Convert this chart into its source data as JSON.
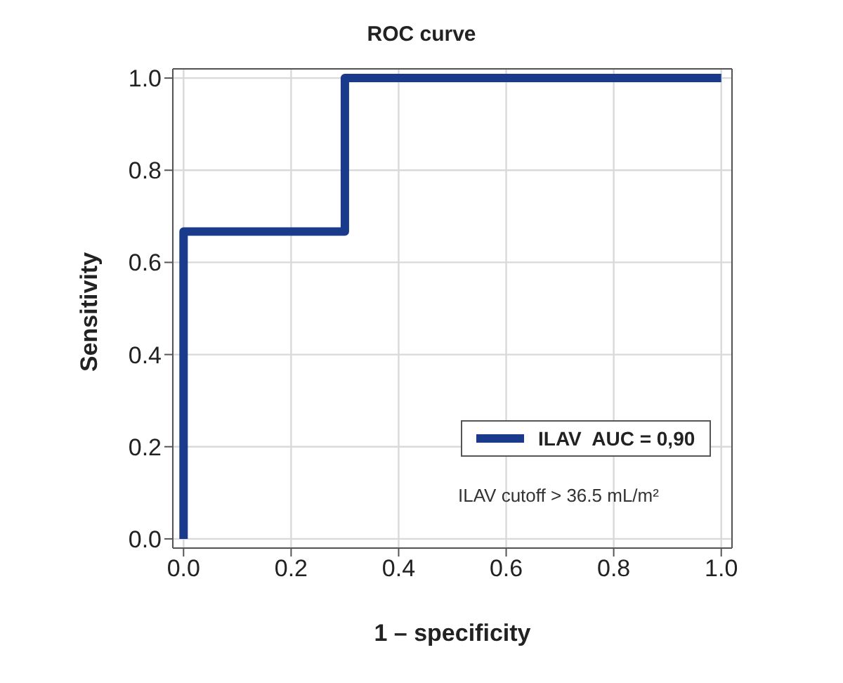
{
  "chart_data": {
    "type": "line",
    "title": "ROC curve",
    "xlabel": "1 – specificity",
    "ylabel": "Sensitivity",
    "x": [
      0,
      0,
      0.3,
      0.3,
      1
    ],
    "series": [
      {
        "name": "ILAV  AUC = 0,90",
        "color": "#1a3a8c",
        "values": [
          0,
          0.667,
          0.667,
          1,
          1
        ]
      }
    ],
    "xlim": [
      -0.02,
      1.02
    ],
    "ylim": [
      -0.02,
      1.02
    ],
    "xticks": [
      {
        "value": 0,
        "label": "0.0"
      },
      0.2,
      0.4,
      0.6,
      0.8,
      {
        "value": 1,
        "label": "1.0"
      }
    ],
    "yticks": [
      {
        "value": 0,
        "label": "0.0"
      },
      0.2,
      0.4,
      0.6,
      0.8,
      {
        "value": 1,
        "label": "1.0"
      }
    ],
    "grid": true,
    "legend": "bottom right",
    "annotations": [
      "ILAV cutoff > 36.5 mL/m²"
    ]
  }
}
